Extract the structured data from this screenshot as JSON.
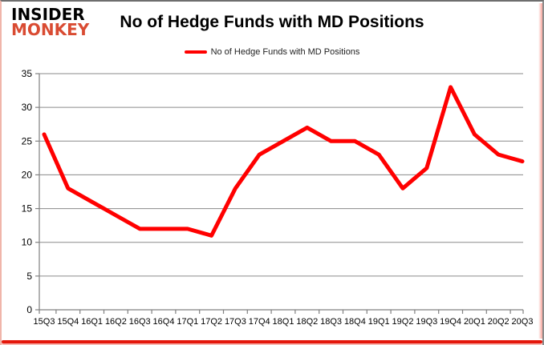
{
  "logo": {
    "line1": "INSIDER",
    "line2": "MONKEY"
  },
  "header": {
    "title": "No of Hedge Funds with MD Positions"
  },
  "legend": {
    "label": "No of Hedge Funds with MD Positions"
  },
  "colors": {
    "line": "#ff0000",
    "grid": "#8a8a8a",
    "axis": "#808080",
    "logo_red": "#d94b32",
    "border_red": "#e4170b",
    "text": "#000000"
  },
  "chart_data": {
    "type": "line",
    "title": "No of Hedge Funds with MD Positions",
    "categories": [
      "15Q3",
      "15Q4",
      "16Q1",
      "16Q2",
      "16Q3",
      "16Q4",
      "17Q1",
      "17Q2",
      "17Q3",
      "17Q4",
      "18Q1",
      "18Q2",
      "18Q3",
      "18Q4",
      "19Q1",
      "19Q2",
      "19Q3",
      "19Q4",
      "20Q1",
      "20Q2",
      "20Q3"
    ],
    "series": [
      {
        "name": "No of Hedge Funds with MD Positions",
        "color": "#ff0000",
        "values": [
          26,
          18,
          16,
          14,
          12,
          12,
          12,
          11,
          18,
          23,
          25,
          27,
          25,
          25,
          23,
          18,
          21,
          33,
          26,
          23,
          22
        ]
      }
    ],
    "xlabel": "",
    "ylabel": "",
    "ylim": [
      0,
      35
    ],
    "ytick_step": 5,
    "grid": true,
    "legend_position": "top-center"
  }
}
